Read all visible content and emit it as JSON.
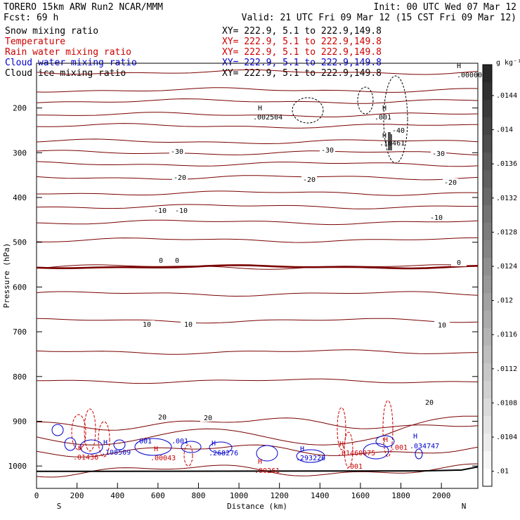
{
  "header": {
    "model": "TORERO   15km ARW   Run2    NCAR/MMM",
    "init": "Init: 00 UTC Wed 07 Mar 12",
    "fcst": "Fcst:   69 h",
    "valid": "Valid: 21 UTC Fri 09 Mar 12 (15 CST Fri 09 Mar 12)",
    "fields": [
      {
        "name": "Snow mixing ratio",
        "xy": "XY= 222.9,  5.1 to 222.9,149.8",
        "color": "#000000"
      },
      {
        "name": "Temperature",
        "xy": "XY= 222.9,  5.1 to 222.9,149.8",
        "color": "#cc0000"
      },
      {
        "name": "Rain water mixing ratio",
        "xy": "XY= 222.9,  5.1 to 222.9,149.8",
        "color": "#cc0000"
      },
      {
        "name": "Cloud water mixing ratio",
        "xy": "XY= 222.9,  5.1 to 222.9,149.8",
        "color": "#0000cc"
      },
      {
        "name": "Cloud ice mixing ratio",
        "xy": "XY= 222.9,  5.1 to 222.9,149.8",
        "color": "#000000"
      }
    ]
  },
  "chart_data": {
    "type": "contour",
    "xlabel": "Distance (km)",
    "ylabel": "Pressure (hPa)",
    "x_ticks": [
      "0",
      "200",
      "400",
      "600",
      "800",
      "1000",
      "1200",
      "1400",
      "1600",
      "1800",
      "2000"
    ],
    "y_ticks": [
      "200",
      "300",
      "400",
      "500",
      "600",
      "700",
      "800",
      "900",
      "1000"
    ],
    "xlim": [
      0,
      2180
    ],
    "ylim": [
      1050,
      100
    ],
    "endpoints": {
      "left": "S",
      "right": "N"
    },
    "temperature_contour_labels": [
      "-40",
      "-30",
      "-30",
      "-30",
      "-20",
      "-20",
      "-20",
      "-10",
      "-10",
      "-10",
      "0",
      "0",
      "0",
      "10",
      "10",
      "10",
      "20",
      "20",
      "20"
    ],
    "temperature_isotherms_c": [
      {
        "t": -40,
        "p": 120
      },
      {
        "t": -35,
        "p": 160
      },
      {
        "t": -35,
        "p": 185
      },
      {
        "t": -30,
        "p": 215
      },
      {
        "t": -30,
        "p": 240
      },
      {
        "t": -25,
        "p": 275
      },
      {
        "t": -25,
        "p": 300
      },
      {
        "t": -20,
        "p": 325
      },
      {
        "t": -20,
        "p": 355
      },
      {
        "t": -15,
        "p": 390
      },
      {
        "t": -15,
        "p": 420
      },
      {
        "t": -10,
        "p": 455
      },
      {
        "t": -5,
        "p": 495
      },
      {
        "t": 0,
        "p": 555
      },
      {
        "t": 5,
        "p": 615
      },
      {
        "t": 10,
        "p": 675
      },
      {
        "t": 15,
        "p": 745
      },
      {
        "t": 20,
        "p": 810
      },
      {
        "t": 20,
        "p": 905
      },
      {
        "t": 25,
        "p": 965
      },
      {
        "t": 30,
        "p": 1010
      }
    ],
    "max_labels": [
      {
        "text": ".00000",
        "color": "#000000"
      },
      {
        "text": ".002504",
        "color": "#000000"
      },
      {
        "text": ".001",
        "color": "#000000"
      },
      {
        "text": ".10461",
        "color": "#000000"
      },
      {
        "text": ".01436",
        "color": "#cc0000"
      },
      {
        "text": ".108509",
        "color": "#0000cc"
      },
      {
        "text": ".001",
        "color": "#0000cc"
      },
      {
        "text": ".001",
        "color": "#0000cc"
      },
      {
        "text": ".00043",
        "color": "#cc0000"
      },
      {
        "text": ".268276",
        "color": "#0000cc"
      },
      {
        "text": ".00261",
        "color": "#cc0000"
      },
      {
        "text": ".293226",
        "color": "#0000cc"
      },
      {
        "text": ".01460075",
        "color": "#cc0000"
      },
      {
        "text": ".001",
        "color": "#cc0000"
      },
      {
        "text": ".001",
        "color": "#cc0000"
      },
      {
        "text": ".034747",
        "color": "#0000cc"
      }
    ],
    "colorbar": {
      "unit": "g kg⁻¹",
      "labels": [
        ".0144",
        ".014",
        ".0136",
        ".0132",
        ".0128",
        ".0124",
        ".012",
        ".0116",
        ".0112",
        ".0108",
        ".0104",
        ".01"
      ]
    }
  }
}
